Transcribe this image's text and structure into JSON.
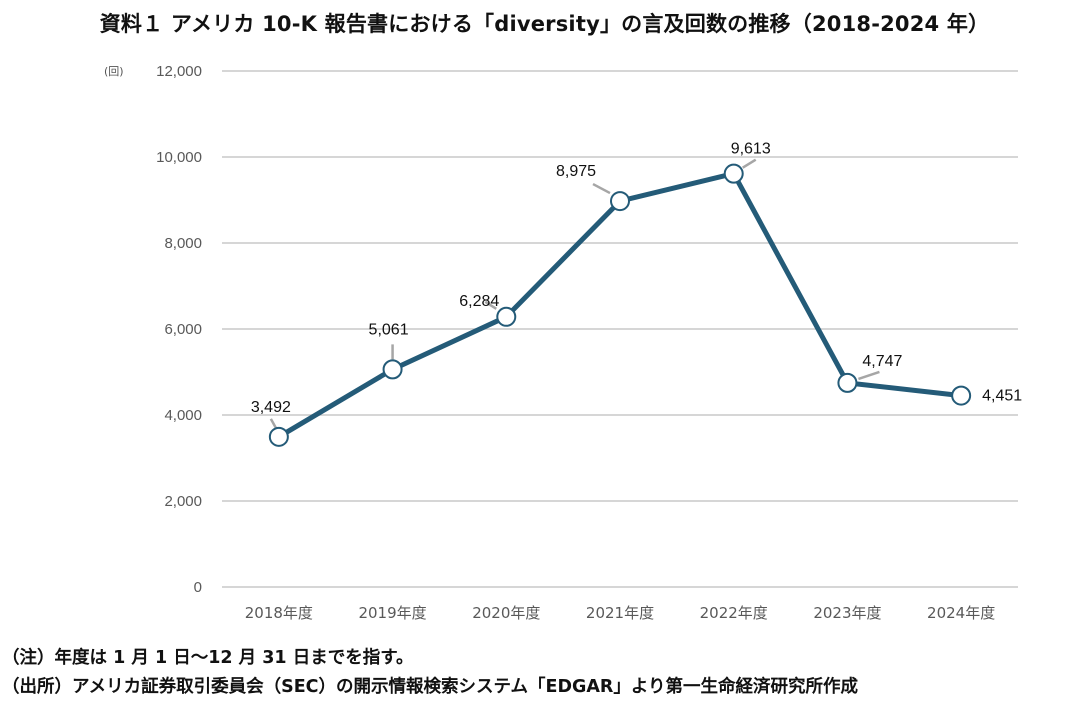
{
  "title": "資料１ アメリカ 10-K 報告書における「diversity」の言及回数の推移（2018-2024 年）",
  "y_unit": "(回)",
  "notes": {
    "note": "（注）年度は 1 月 1 日～12 月 31 日までを指す。",
    "source": "（出所）アメリカ証券取引委員会（SEC）の開示情報検索システム「EDGAR」より第一生命経済研究所作成"
  },
  "colors": {
    "line": "#245b78",
    "grid": "#c8c8c8",
    "marker_fill": "#ffffff",
    "leader": "#a6a6a6"
  },
  "chart_data": {
    "type": "line",
    "title": "資料１ アメリカ 10-K 報告書における「diversity」の言及回数の推移（2018-2024 年）",
    "xlabel": "",
    "ylabel": "(回)",
    "categories": [
      "2018年度",
      "2019年度",
      "2020年度",
      "2021年度",
      "2022年度",
      "2023年度",
      "2024年度"
    ],
    "values": [
      3492,
      5061,
      6284,
      8975,
      9613,
      4747,
      4451
    ],
    "value_labels": [
      "3,492",
      "5,061",
      "6,284",
      "8,975",
      "9,613",
      "4,747",
      "4,451"
    ],
    "ylim": [
      0,
      12000
    ],
    "yticks": [
      0,
      2000,
      4000,
      6000,
      8000,
      10000,
      12000
    ],
    "ytick_labels": [
      "0",
      "2,000",
      "4,000",
      "6,000",
      "8,000",
      "10,000",
      "12,000"
    ],
    "grid": true,
    "legend": "none"
  }
}
